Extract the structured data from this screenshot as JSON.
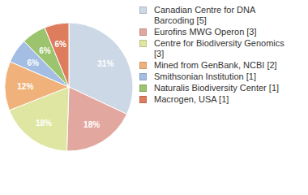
{
  "chart_data": {
    "type": "pie",
    "categories": [
      "Canadian Centre for DNA Barcoding [5]",
      "Eurofins MWG Operon [3]",
      "Centre for Biodiversity Genomics [3]",
      "Mined from GenBank, NCBI [2]",
      "Smithsonian Institution [1]",
      "Naturalis Biodiversity Center [1]",
      "Macrogen, USA [1]"
    ],
    "values": [
      31,
      18,
      18,
      12,
      6,
      6,
      6
    ],
    "value_labels": [
      "31%",
      "18%",
      "18%",
      "12%",
      "6%",
      "6%",
      "6%"
    ],
    "colors": [
      "#ccd8e6",
      "#e2a8a0",
      "#dee6a2",
      "#f0b27a",
      "#a3bde3",
      "#9cc46e",
      "#de7c5e"
    ],
    "data_labels": true,
    "legend": "right"
  }
}
